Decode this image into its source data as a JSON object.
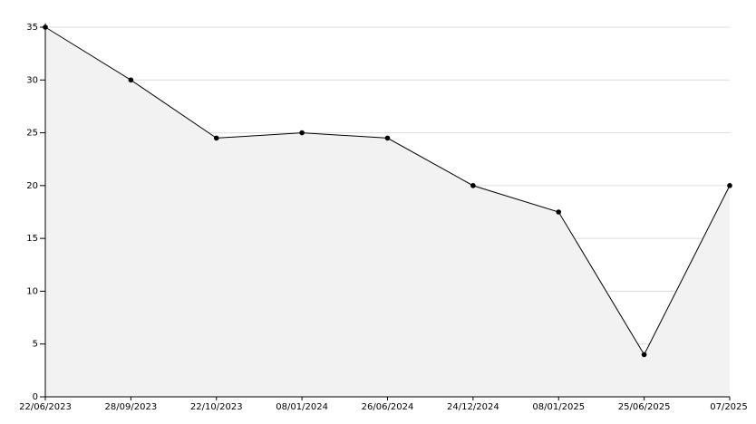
{
  "chart_data": {
    "type": "area",
    "categories": [
      "22/06/2023",
      "28/09/2023",
      "22/10/2023",
      "08/01/2024",
      "26/06/2024",
      "24/12/2024",
      "08/01/2025",
      "25/06/2025",
      "07/2025"
    ],
    "series": [
      {
        "values": [
          35,
          30,
          24.5,
          25,
          24.5,
          20,
          17.5,
          4,
          20
        ],
        "color": "#000000",
        "fill": "#f2f2f2"
      }
    ],
    "ylim": [
      0,
      35
    ],
    "yticks": [
      0,
      5,
      10,
      15,
      20,
      25,
      30,
      35
    ],
    "grid": true
  }
}
